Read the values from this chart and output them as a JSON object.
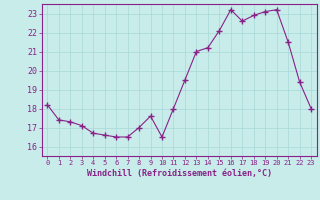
{
  "x": [
    0,
    1,
    2,
    3,
    4,
    5,
    6,
    7,
    8,
    9,
    10,
    11,
    12,
    13,
    14,
    15,
    16,
    17,
    18,
    19,
    20,
    21,
    22,
    23
  ],
  "y": [
    18.2,
    17.4,
    17.3,
    17.1,
    16.7,
    16.6,
    16.5,
    16.5,
    17.0,
    17.6,
    16.5,
    18.0,
    19.5,
    21.0,
    21.2,
    22.1,
    23.2,
    22.6,
    22.9,
    23.1,
    23.2,
    21.5,
    19.4,
    18.0
  ],
  "line_color": "#882288",
  "marker": "+",
  "marker_size": 4,
  "bg_color": "#c8ecea",
  "grid_color": "#a8d8d8",
  "xlabel": "Windchill (Refroidissement éolien,°C)",
  "xlabel_color": "#882288",
  "ylim": [
    15.5,
    23.5
  ],
  "yticks": [
    16,
    17,
    18,
    19,
    20,
    21,
    22,
    23
  ],
  "xlim": [
    -0.5,
    23.5
  ],
  "xticks": [
    0,
    1,
    2,
    3,
    4,
    5,
    6,
    7,
    8,
    9,
    10,
    11,
    12,
    13,
    14,
    15,
    16,
    17,
    18,
    19,
    20,
    21,
    22,
    23
  ],
  "tick_color": "#882288",
  "spine_color": "#882288",
  "axis_bg": "#c8ecea"
}
